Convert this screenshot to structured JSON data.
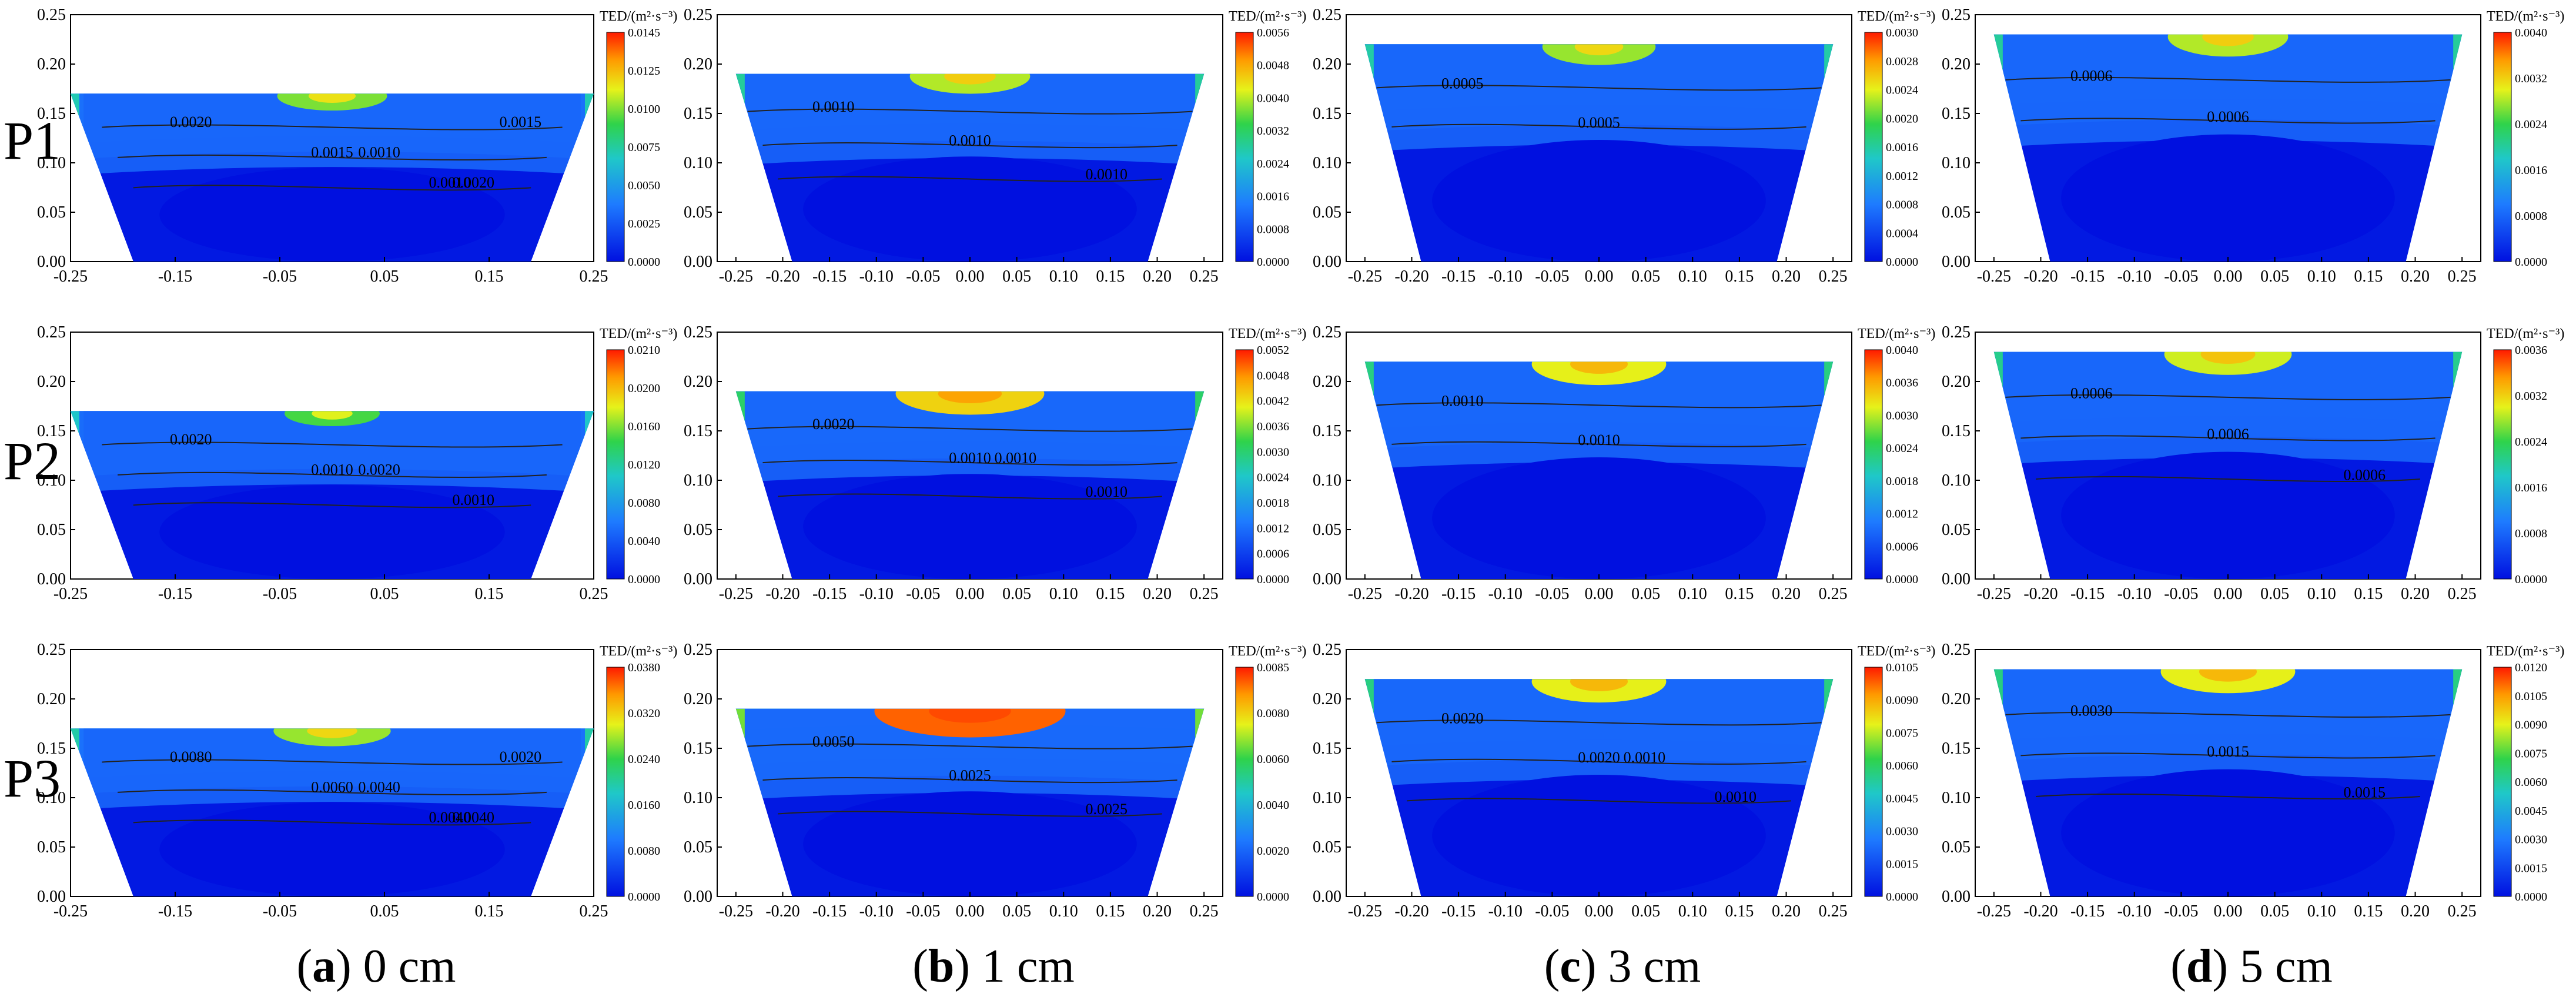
{
  "figure": {
    "row_labels": [
      "P1",
      "P2",
      "P3"
    ],
    "columns": [
      {
        "letter": "a",
        "depth": "0 cm"
      },
      {
        "letter": "b",
        "depth": "1 cm"
      },
      {
        "letter": "c",
        "depth": "3 cm"
      },
      {
        "letter": "d",
        "depth": "5 cm"
      }
    ],
    "colorbar_title": "TED/(m²·s⁻³)",
    "colors": {
      "low": "#0a1fe6",
      "mid": "#2fd34a",
      "high": "#ff1a00",
      "contour": "#222222"
    }
  },
  "chart_data": [
    {
      "id": "P1-a",
      "row": "P1",
      "column": "a",
      "type": "heatmap",
      "xlim": [
        -0.25,
        0.25
      ],
      "ylim": [
        0,
        0.25
      ],
      "xticks": [
        "-0.25",
        "-0.15",
        "-0.05",
        "0.05",
        "0.15",
        "0.25"
      ],
      "yticks": [
        "0.00",
        "0.05",
        "0.10",
        "0.15",
        "0.20",
        "0.25"
      ],
      "colorbar": [
        "0.0145",
        "0.0125",
        "0.0100",
        "0.0075",
        "0.0050",
        "0.0025",
        "0.0000"
      ],
      "contour_labels": [
        "0.0020",
        "0.0015",
        "0.0020",
        "0.0010",
        "0.0010",
        "0.0015"
      ],
      "top": 0.17,
      "intensity": 0.25
    },
    {
      "id": "P1-b",
      "row": "P1",
      "column": "b",
      "type": "heatmap",
      "xlim": [
        -0.27,
        0.27
      ],
      "ylim": [
        0,
        0.25
      ],
      "xticks": [
        "-0.25",
        "-0.20",
        "-0.15",
        "-0.10",
        "-0.05",
        "0.00",
        "0.05",
        "0.10",
        "0.15",
        "0.20",
        "0.25"
      ],
      "yticks": [
        "0.00",
        "0.05",
        "0.10",
        "0.15",
        "0.20",
        "0.25"
      ],
      "colorbar": [
        "0.0056",
        "0.0048",
        "0.0040",
        "0.0032",
        "0.0024",
        "0.0016",
        "0.0008",
        "0.0000"
      ],
      "contour_labels": [
        "0.0010",
        "0.0010",
        "0.0010"
      ],
      "top": 0.19,
      "intensity": 0.35
    },
    {
      "id": "P1-c",
      "row": "P1",
      "column": "c",
      "type": "heatmap",
      "xlim": [
        -0.27,
        0.27
      ],
      "ylim": [
        0,
        0.25
      ],
      "xticks": [
        "-0.25",
        "-0.20",
        "-0.15",
        "-0.10",
        "-0.05",
        "0.00",
        "0.05",
        "0.10",
        "0.15",
        "0.20",
        "0.25"
      ],
      "yticks": [
        "0.00",
        "0.05",
        "0.10",
        "0.15",
        "0.20",
        "0.25"
      ],
      "colorbar": [
        "0.0030",
        "0.0028",
        "0.0024",
        "0.0020",
        "0.0016",
        "0.0012",
        "0.0008",
        "0.0004",
        "0.0000"
      ],
      "contour_labels": [
        "0.0005",
        "0.0005"
      ],
      "top": 0.22,
      "intensity": 0.3
    },
    {
      "id": "P1-d",
      "row": "P1",
      "column": "d",
      "type": "heatmap",
      "xlim": [
        -0.27,
        0.27
      ],
      "ylim": [
        0,
        0.25
      ],
      "xticks": [
        "-0.25",
        "-0.20",
        "-0.15",
        "-0.10",
        "-0.05",
        "0.00",
        "0.05",
        "0.10",
        "0.15",
        "0.20",
        "0.25"
      ],
      "yticks": [
        "0.00",
        "0.05",
        "0.10",
        "0.15",
        "0.20",
        "0.25"
      ],
      "colorbar": [
        "0.0040",
        "0.0032",
        "0.0024",
        "0.0016",
        "0.0008",
        "0.0000"
      ],
      "contour_labels": [
        "0.0006",
        "0.0006"
      ],
      "top": 0.23,
      "intensity": 0.35
    },
    {
      "id": "P2-a",
      "row": "P2",
      "column": "a",
      "type": "heatmap",
      "xlim": [
        -0.25,
        0.25
      ],
      "ylim": [
        0,
        0.25
      ],
      "xticks": [
        "-0.25",
        "-0.15",
        "-0.05",
        "0.05",
        "0.15",
        "0.25"
      ],
      "yticks": [
        "0.00",
        "0.05",
        "0.10",
        "0.15",
        "0.20",
        "0.25"
      ],
      "colorbar": [
        "0.0210",
        "0.0200",
        "0.0160",
        "0.0120",
        "0.0080",
        "0.0040",
        "0.0000"
      ],
      "contour_labels": [
        "0.0020",
        "0.0010",
        "0.0010",
        "0.0020"
      ],
      "top": 0.17,
      "intensity": 0.15
    },
    {
      "id": "P2-b",
      "row": "P2",
      "column": "b",
      "type": "heatmap",
      "xlim": [
        -0.27,
        0.27
      ],
      "ylim": [
        0,
        0.25
      ],
      "xticks": [
        "-0.25",
        "-0.20",
        "-0.15",
        "-0.10",
        "-0.05",
        "0.00",
        "0.05",
        "0.10",
        "0.15",
        "0.20",
        "0.25"
      ],
      "yticks": [
        "0.00",
        "0.05",
        "0.10",
        "0.15",
        "0.20",
        "0.25"
      ],
      "colorbar": [
        "0.0052",
        "0.0048",
        "0.0042",
        "0.0036",
        "0.0030",
        "0.0024",
        "0.0018",
        "0.0012",
        "0.0006",
        "0.0000"
      ],
      "contour_labels": [
        "0.0020",
        "0.0010",
        "0.0010",
        "0.0010"
      ],
      "top": 0.19,
      "intensity": 0.55
    },
    {
      "id": "P2-c",
      "row": "P2",
      "column": "c",
      "type": "heatmap",
      "xlim": [
        -0.27,
        0.27
      ],
      "ylim": [
        0,
        0.25
      ],
      "xticks": [
        "-0.25",
        "-0.20",
        "-0.15",
        "-0.10",
        "-0.05",
        "0.00",
        "0.05",
        "0.10",
        "0.15",
        "0.20",
        "0.25"
      ],
      "yticks": [
        "0.00",
        "0.05",
        "0.10",
        "0.15",
        "0.20",
        "0.25"
      ],
      "colorbar": [
        "0.0040",
        "0.0036",
        "0.0030",
        "0.0024",
        "0.0018",
        "0.0012",
        "0.0006",
        "0.0000"
      ],
      "contour_labels": [
        "0.0010",
        "0.0010"
      ],
      "top": 0.22,
      "intensity": 0.45
    },
    {
      "id": "P2-d",
      "row": "P2",
      "column": "d",
      "type": "heatmap",
      "xlim": [
        -0.27,
        0.27
      ],
      "ylim": [
        0,
        0.25
      ],
      "xticks": [
        "-0.25",
        "-0.20",
        "-0.15",
        "-0.10",
        "-0.05",
        "0.00",
        "0.05",
        "0.10",
        "0.15",
        "0.20",
        "0.25"
      ],
      "yticks": [
        "0.00",
        "0.05",
        "0.10",
        "0.15",
        "0.20",
        "0.25"
      ],
      "colorbar": [
        "0.0036",
        "0.0032",
        "0.0024",
        "0.0016",
        "0.0008",
        "0.0000"
      ],
      "contour_labels": [
        "0.0006",
        "0.0006",
        "0.0006"
      ],
      "top": 0.23,
      "intensity": 0.4
    },
    {
      "id": "P3-a",
      "row": "P3",
      "column": "a",
      "type": "heatmap",
      "xlim": [
        -0.25,
        0.25
      ],
      "ylim": [
        0,
        0.25
      ],
      "xticks": [
        "-0.25",
        "-0.15",
        "-0.05",
        "0.05",
        "0.15",
        "0.25"
      ],
      "yticks": [
        "0.00",
        "0.05",
        "0.10",
        "0.15",
        "0.20",
        "0.25"
      ],
      "colorbar": [
        "0.0380",
        "0.0320",
        "0.0240",
        "0.0160",
        "0.0080",
        "0.0000"
      ],
      "contour_labels": [
        "0.0080",
        "0.0060",
        "0.0040",
        "0.0040",
        "0.0040",
        "0.0020"
      ],
      "top": 0.17,
      "intensity": 0.3
    },
    {
      "id": "P3-b",
      "row": "P3",
      "column": "b",
      "type": "heatmap",
      "xlim": [
        -0.27,
        0.27
      ],
      "ylim": [
        0,
        0.25
      ],
      "xticks": [
        "-0.25",
        "-0.20",
        "-0.15",
        "-0.10",
        "-0.05",
        "0.00",
        "0.05",
        "0.10",
        "0.15",
        "0.20",
        "0.25"
      ],
      "yticks": [
        "0.00",
        "0.05",
        "0.10",
        "0.15",
        "0.20",
        "0.25"
      ],
      "colorbar": [
        "0.0085",
        "0.0080",
        "0.0060",
        "0.0040",
        "0.0020",
        "0.0000"
      ],
      "contour_labels": [
        "0.0050",
        "0.0025",
        "0.0025"
      ],
      "top": 0.19,
      "intensity": 0.85
    },
    {
      "id": "P3-c",
      "row": "P3",
      "column": "c",
      "type": "heatmap",
      "xlim": [
        -0.27,
        0.27
      ],
      "ylim": [
        0,
        0.25
      ],
      "xticks": [
        "-0.25",
        "-0.20",
        "-0.15",
        "-0.10",
        "-0.05",
        "0.00",
        "0.05",
        "0.10",
        "0.15",
        "0.20",
        "0.25"
      ],
      "yticks": [
        "0.00",
        "0.05",
        "0.10",
        "0.15",
        "0.20",
        "0.25"
      ],
      "colorbar": [
        "0.0105",
        "0.0090",
        "0.0075",
        "0.0060",
        "0.0045",
        "0.0030",
        "0.0015",
        "0.0000"
      ],
      "contour_labels": [
        "0.0020",
        "0.0020",
        "0.0010",
        "0.0010"
      ],
      "top": 0.22,
      "intensity": 0.45
    },
    {
      "id": "P3-d",
      "row": "P3",
      "column": "d",
      "type": "heatmap",
      "xlim": [
        -0.27,
        0.27
      ],
      "ylim": [
        0,
        0.25
      ],
      "xticks": [
        "-0.25",
        "-0.20",
        "-0.15",
        "-0.10",
        "-0.05",
        "0.00",
        "0.05",
        "0.10",
        "0.15",
        "0.20",
        "0.25"
      ],
      "yticks": [
        "0.00",
        "0.05",
        "0.10",
        "0.15",
        "0.20",
        "0.25"
      ],
      "colorbar": [
        "0.0120",
        "0.0105",
        "0.0090",
        "0.0075",
        "0.0060",
        "0.0045",
        "0.0030",
        "0.0015",
        "0.0000"
      ],
      "contour_labels": [
        "0.0030",
        "0.0015",
        "0.0015"
      ],
      "top": 0.23,
      "intensity": 0.45
    }
  ]
}
